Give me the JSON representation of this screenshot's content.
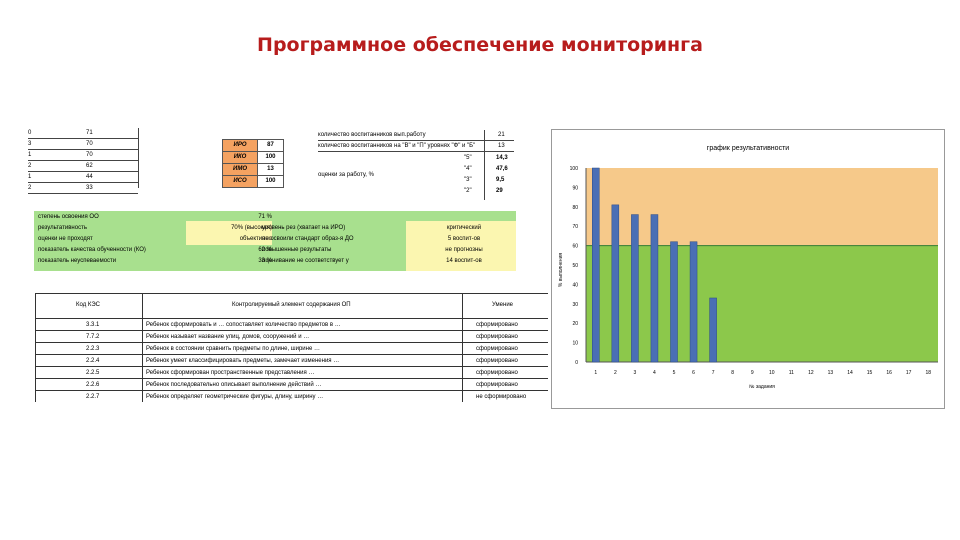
{
  "title": "Программное обеспечение мониторинга",
  "top_list": [
    {
      "k": "0",
      "v": "71"
    },
    {
      "k": "3",
      "v": "70"
    },
    {
      "k": "1",
      "v": "70"
    },
    {
      "k": "2",
      "v": "62"
    },
    {
      "k": "1",
      "v": "44"
    },
    {
      "k": "2",
      "v": "33"
    }
  ],
  "levels": [
    {
      "name": "ИРО",
      "value": "87"
    },
    {
      "name": "ИКО",
      "value": "100"
    },
    {
      "name": "ИМО",
      "value": "13"
    },
    {
      "name": "ИСО",
      "value": "100"
    }
  ],
  "stats": {
    "row1_label": "количество воспитанников вып.работу",
    "row1_value": "21",
    "row2_label": "количество воспитанников на \"В\" и \"П\" уровнях \"Ф\" и \"Б\"",
    "row2_value": "13",
    "score_label": "оценки за работу, %",
    "grades": [
      {
        "grade": "\"5\"",
        "value": "14,3"
      },
      {
        "grade": "\"4\"",
        "value": "47,6"
      },
      {
        "grade": "\"3\"",
        "value": "9,5"
      },
      {
        "grade": "\"2\"",
        "value": "29"
      }
    ]
  },
  "green": {
    "lines": [
      "степень освоения ОО",
      "результативность",
      "оценки не проходят",
      "показатель качества обученности (КО)",
      "показатель неуспеваемости"
    ],
    "mid_values": [
      "71 %",
      "70% (высокая)",
      "объективно",
      "62 %",
      "33 %"
    ],
    "right_labels": [
      "уровень рез (хватает на ИРО)",
      "не освоили стандарт образ-я ДО",
      "повышенные результаты",
      "оценивание не соответствует у"
    ],
    "right_values": [
      "критический",
      "5 воспит-ов",
      "не прогнозны",
      "14 воспит-ов"
    ]
  },
  "table": {
    "headers": [
      "Код КЭС",
      "Контролируемый элемент содержания ОП",
      "Умение"
    ],
    "rows": [
      {
        "code": "3.3.1",
        "text": "Ребенок сформировать и … сопоставляет количество предметов в …",
        "skill": "сформировано"
      },
      {
        "code": "7.7.2",
        "text": "Ребенок называет название улиц, домов, сооружений и …",
        "skill": "сформировано"
      },
      {
        "code": "2.2.3",
        "text": "Ребенок в состоянии сравнить предметы по длине, ширине …",
        "skill": "сформировано"
      },
      {
        "code": "2.2.4",
        "text": "Ребенок умеет классифицировать предметы, замечает изменения …",
        "skill": "сформировано"
      },
      {
        "code": "2.2.5",
        "text": "Ребенок сформирован пространственные представления …",
        "skill": "сформировано"
      },
      {
        "code": "2.2.6",
        "text": "Ребенок последовательно описывает выполнение действий …",
        "skill": "сформировано"
      },
      {
        "code": "2.2.7",
        "text": "Ребенок определяет геометрические фигуры, длину, ширину …",
        "skill": "не сформировано"
      }
    ]
  },
  "chart_data": {
    "type": "bar",
    "title": "график результативности",
    "xlabel": "№ задания",
    "ylabel": "% выполнения",
    "categories": [
      "1",
      "2",
      "3",
      "4",
      "5",
      "6",
      "7",
      "8",
      "9",
      "10",
      "11",
      "12",
      "13",
      "14",
      "15",
      "16",
      "17",
      "18"
    ],
    "values": [
      100,
      81,
      76,
      76,
      62,
      62,
      33,
      0,
      0,
      0,
      0,
      0,
      0,
      0,
      0,
      0,
      0,
      0
    ],
    "threshold": 60,
    "ylim": [
      0,
      100
    ],
    "yticks": [
      0,
      10,
      20,
      30,
      40,
      50,
      60,
      70,
      80,
      90,
      100
    ],
    "colors": {
      "bar": "#4a6fb5",
      "above": "#f6c98a",
      "below": "#8cc84b"
    }
  }
}
